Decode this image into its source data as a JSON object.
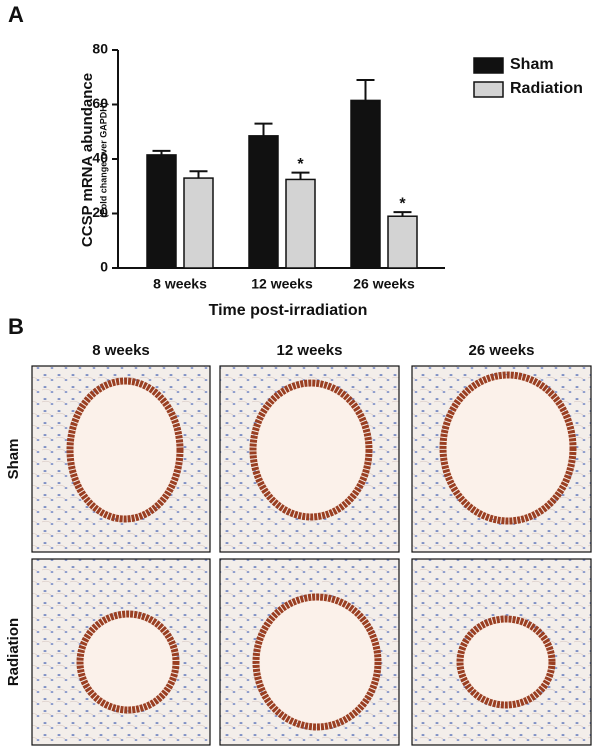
{
  "panel_a": {
    "label": "A"
  },
  "chart_data": {
    "type": "bar",
    "y_label": "CCSP mRNA abundance",
    "y_sublabel": "(Fold change over GAPDH)",
    "x_label": "Time post-irradiation",
    "categories": [
      "8 weeks",
      "12 weeks",
      "26 weeks"
    ],
    "series": [
      {
        "name": "Sham",
        "color": "#111111",
        "values": [
          41.5,
          48.5,
          61.5
        ],
        "errors": [
          1.5,
          4.5,
          7.5
        ]
      },
      {
        "name": "Radiation",
        "color": "#d3d3d3",
        "values": [
          33,
          32.5,
          19
        ],
        "errors": [
          2.5,
          2.5,
          1.5
        ],
        "significance": [
          null,
          "*",
          "*"
        ]
      }
    ],
    "ylim": [
      0,
      80
    ],
    "yticks": [
      0,
      20,
      40,
      60,
      80
    ],
    "legend": "right"
  },
  "panel_b": {
    "label": "B",
    "columns": [
      "8 weeks",
      "12 weeks",
      "26 weeks"
    ],
    "rows": [
      "Sham",
      "Radiation"
    ]
  }
}
